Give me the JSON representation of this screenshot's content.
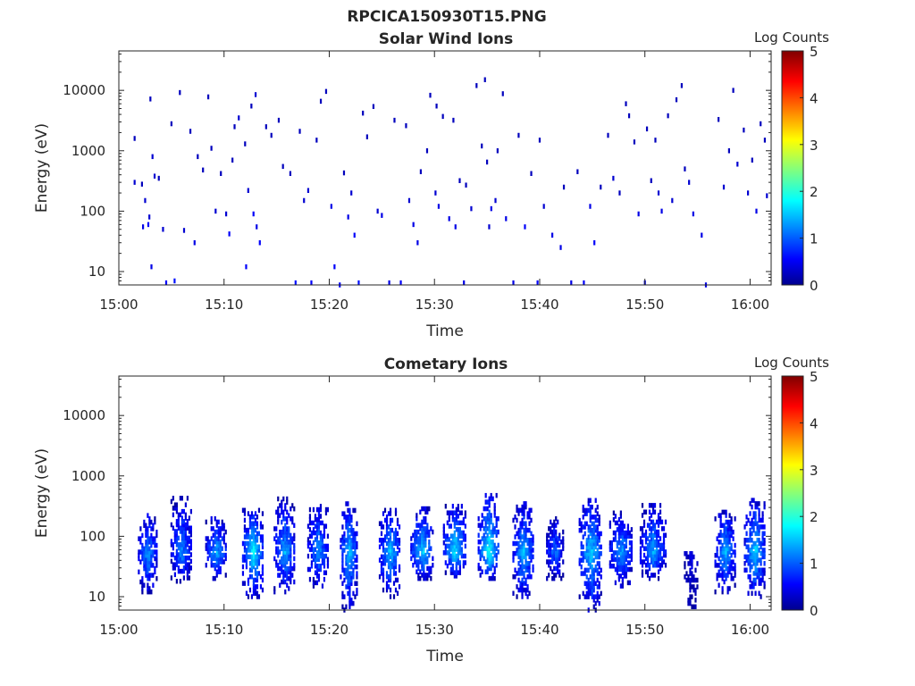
{
  "figure_title": "RPCICA150930T15.PNG",
  "chart_data": [
    {
      "type": "heatmap",
      "title": "Solar Wind Ions",
      "xlabel": "Time",
      "ylabel": "Energy (eV)",
      "x_tick_labels": [
        "15:00",
        "15:10",
        "15:20",
        "15:30",
        "15:40",
        "15:50",
        "16:00"
      ],
      "x_range_minutes": [
        0,
        62
      ],
      "y_scale": "log",
      "y_range": [
        6,
        45000
      ],
      "y_ticks": [
        {
          "value": 10,
          "label": "10"
        },
        {
          "value": 100,
          "label": "100"
        },
        {
          "value": 1000,
          "label": "1000"
        },
        {
          "value": 10000,
          "label": "10000"
        }
      ],
      "colorbar": {
        "label": "Log Counts",
        "range": [
          0,
          5
        ],
        "ticks": [
          "0",
          "1",
          "2",
          "3",
          "4",
          "5"
        ],
        "colormap": "jet"
      },
      "pattern": "sparse isolated low-count pixels from ~6 eV to ~15000 eV",
      "points": [
        [
          1.5,
          1600,
          0.3
        ],
        [
          1.5,
          300,
          0.4
        ],
        [
          2.2,
          280,
          0.3
        ],
        [
          2.5,
          150,
          0.4
        ],
        [
          2.3,
          55,
          0.5
        ],
        [
          2.8,
          60,
          0.6
        ],
        [
          2.9,
          80,
          0.4
        ],
        [
          3.0,
          7200,
          0.3
        ],
        [
          3.2,
          800,
          0.4
        ],
        [
          3.4,
          380,
          0.4
        ],
        [
          3.8,
          350,
          0.3
        ],
        [
          3.1,
          12,
          0.5
        ],
        [
          4.2,
          50,
          0.4
        ],
        [
          4.5,
          6.5,
          0.6
        ],
        [
          5.0,
          2800,
          0.3
        ],
        [
          5.3,
          7,
          0.7
        ],
        [
          5.8,
          9200,
          0.3
        ],
        [
          6.2,
          48,
          0.4
        ],
        [
          6.8,
          2100,
          0.3
        ],
        [
          7.2,
          30,
          0.5
        ],
        [
          7.5,
          800,
          0.3
        ],
        [
          8.0,
          480,
          0.3
        ],
        [
          8.5,
          7800,
          0.3
        ],
        [
          8.8,
          1100,
          0.3
        ],
        [
          9.2,
          100,
          0.4
        ],
        [
          9.7,
          420,
          0.3
        ],
        [
          10.2,
          90,
          0.4
        ],
        [
          10.5,
          42,
          0.6
        ],
        [
          10.8,
          700,
          0.3
        ],
        [
          11.0,
          2500,
          0.3
        ],
        [
          11.4,
          3500,
          0.4
        ],
        [
          12.0,
          1300,
          0.3
        ],
        [
          12.3,
          220,
          0.4
        ],
        [
          12.6,
          5500,
          0.3
        ],
        [
          12.8,
          90,
          0.6
        ],
        [
          13.0,
          8500,
          0.4
        ],
        [
          13.1,
          55,
          0.5
        ],
        [
          13.4,
          30,
          0.6
        ],
        [
          12.1,
          12,
          0.6
        ],
        [
          14.0,
          2500,
          0.3
        ],
        [
          14.5,
          1800,
          0.3
        ],
        [
          15.2,
          3200,
          0.3
        ],
        [
          15.6,
          550,
          0.3
        ],
        [
          16.3,
          420,
          0.3
        ],
        [
          16.8,
          6.5,
          0.7
        ],
        [
          17.2,
          2100,
          0.3
        ],
        [
          17.6,
          150,
          0.4
        ],
        [
          18.0,
          220,
          0.4
        ],
        [
          18.3,
          6.5,
          0.6
        ],
        [
          18.8,
          1500,
          0.3
        ],
        [
          19.2,
          6600,
          0.3
        ],
        [
          19.7,
          9600,
          0.3
        ],
        [
          20.2,
          120,
          0.5
        ],
        [
          20.5,
          12,
          0.6
        ],
        [
          21.0,
          6,
          0.6
        ],
        [
          21.4,
          430,
          0.3
        ],
        [
          21.8,
          80,
          0.5
        ],
        [
          22.1,
          200,
          0.4
        ],
        [
          22.4,
          40,
          0.6
        ],
        [
          22.8,
          6.5,
          0.7
        ],
        [
          23.2,
          4200,
          0.3
        ],
        [
          23.6,
          1700,
          0.3
        ],
        [
          24.2,
          5400,
          0.3
        ],
        [
          24.6,
          100,
          0.4
        ],
        [
          25.0,
          85,
          0.5
        ],
        [
          25.7,
          6.5,
          0.5
        ],
        [
          26.2,
          3200,
          0.3
        ],
        [
          26.8,
          6.5,
          0.6
        ],
        [
          27.3,
          2600,
          0.3
        ],
        [
          27.6,
          150,
          0.4
        ],
        [
          28.0,
          60,
          0.5
        ],
        [
          28.4,
          30,
          0.5
        ],
        [
          28.7,
          450,
          0.3
        ],
        [
          29.3,
          1000,
          0.3
        ],
        [
          29.6,
          8300,
          0.3
        ],
        [
          30.1,
          200,
          0.4
        ],
        [
          30.2,
          5500,
          0.3
        ],
        [
          30.4,
          120,
          0.5
        ],
        [
          30.8,
          3700,
          0.3
        ],
        [
          31.4,
          75,
          0.5
        ],
        [
          32.0,
          55,
          0.5
        ],
        [
          31.8,
          3200,
          0.3
        ],
        [
          32.4,
          320,
          0.3
        ],
        [
          32.8,
          6.5,
          0.5
        ],
        [
          33.0,
          270,
          0.3
        ],
        [
          33.5,
          110,
          0.4
        ],
        [
          34.0,
          12000,
          0.3
        ],
        [
          34.5,
          1200,
          0.3
        ],
        [
          34.8,
          15000,
          0.3
        ],
        [
          35.0,
          650,
          0.3
        ],
        [
          35.2,
          55,
          0.4
        ],
        [
          35.4,
          110,
          0.5
        ],
        [
          35.8,
          150,
          0.4
        ],
        [
          36.0,
          1000,
          0.3
        ],
        [
          36.5,
          8800,
          0.3
        ],
        [
          36.8,
          75,
          0.5
        ],
        [
          37.5,
          6.5,
          0.5
        ],
        [
          38.0,
          1800,
          0.3
        ],
        [
          38.6,
          55,
          0.6
        ],
        [
          39.2,
          420,
          0.3
        ],
        [
          39.8,
          6.5,
          0.6
        ],
        [
          40.0,
          1500,
          0.3
        ],
        [
          40.4,
          120,
          0.4
        ],
        [
          41.2,
          40,
          0.5
        ],
        [
          42.0,
          25,
          0.5
        ],
        [
          42.3,
          250,
          0.3
        ],
        [
          43.0,
          6.5,
          0.5
        ],
        [
          43.6,
          450,
          0.3
        ],
        [
          44.2,
          6.5,
          0.6
        ],
        [
          44.8,
          120,
          0.5
        ],
        [
          45.2,
          30,
          0.6
        ],
        [
          45.8,
          250,
          0.3
        ],
        [
          46.5,
          1800,
          0.3
        ],
        [
          47.0,
          350,
          0.4
        ],
        [
          47.6,
          200,
          0.3
        ],
        [
          48.2,
          6000,
          0.3
        ],
        [
          48.5,
          3800,
          0.3
        ],
        [
          49.0,
          1400,
          0.3
        ],
        [
          49.4,
          90,
          0.5
        ],
        [
          50.0,
          6.5,
          0.6
        ],
        [
          50.2,
          2300,
          0.3
        ],
        [
          50.6,
          320,
          0.3
        ],
        [
          51.0,
          1500,
          0.3
        ],
        [
          51.3,
          200,
          0.4
        ],
        [
          51.6,
          100,
          0.5
        ],
        [
          52.2,
          3800,
          0.3
        ],
        [
          52.6,
          150,
          0.4
        ],
        [
          53.0,
          7000,
          0.3
        ],
        [
          53.5,
          12000,
          0.3
        ],
        [
          53.8,
          500,
          0.3
        ],
        [
          54.2,
          300,
          0.4
        ],
        [
          54.6,
          90,
          0.5
        ],
        [
          55.4,
          40,
          0.5
        ],
        [
          55.8,
          6,
          0.5
        ],
        [
          57.0,
          3300,
          0.3
        ],
        [
          57.5,
          250,
          0.4
        ],
        [
          58.0,
          1000,
          0.3
        ],
        [
          58.4,
          10000,
          0.3
        ],
        [
          58.8,
          600,
          0.4
        ],
        [
          59.4,
          2200,
          0.3
        ],
        [
          59.8,
          200,
          0.4
        ],
        [
          60.2,
          700,
          0.3
        ],
        [
          60.6,
          100,
          0.5
        ],
        [
          61.0,
          2800,
          0.3
        ],
        [
          61.4,
          1500,
          0.3
        ],
        [
          61.6,
          180,
          0.4
        ]
      ]
    },
    {
      "type": "heatmap",
      "title": "Cometary Ions",
      "xlabel": "Time",
      "ylabel": "Energy (eV)",
      "x_tick_labels": [
        "15:00",
        "15:10",
        "15:20",
        "15:30",
        "15:40",
        "15:50",
        "16:00"
      ],
      "x_range_minutes": [
        0,
        62
      ],
      "y_scale": "log",
      "y_range": [
        6,
        45000
      ],
      "y_ticks": [
        {
          "value": 10,
          "label": "10"
        },
        {
          "value": 100,
          "label": "100"
        },
        {
          "value": 1000,
          "label": "1000"
        },
        {
          "value": 10000,
          "label": "10000"
        }
      ],
      "colorbar": {
        "label": "Log Counts",
        "range": [
          0,
          5
        ],
        "ticks": [
          "0",
          "1",
          "2",
          "3",
          "4",
          "5"
        ],
        "colormap": "jet"
      },
      "pattern": "periodic bursts between ~10 eV and ~500 eV, peak near 40-100 eV, roughly every 3 minutes",
      "bursts": [
        {
          "t": 2.8,
          "half_width": 0.9,
          "e_min": 12,
          "e_max": 250,
          "peak": 1.4
        },
        {
          "t": 6.0,
          "half_width": 1.0,
          "e_min": 18,
          "e_max": 450,
          "peak": 1.3
        },
        {
          "t": 9.3,
          "half_width": 1.0,
          "e_min": 20,
          "e_max": 220,
          "peak": 1.5
        },
        {
          "t": 12.8,
          "half_width": 1.0,
          "e_min": 10,
          "e_max": 280,
          "peak": 1.9
        },
        {
          "t": 15.8,
          "half_width": 1.0,
          "e_min": 12,
          "e_max": 420,
          "peak": 1.5
        },
        {
          "t": 19.0,
          "half_width": 1.0,
          "e_min": 15,
          "e_max": 320,
          "peak": 1.4
        },
        {
          "t": 21.9,
          "half_width": 0.8,
          "e_min": 6,
          "e_max": 380,
          "peak": 1.6
        },
        {
          "t": 25.8,
          "half_width": 1.0,
          "e_min": 10,
          "e_max": 300,
          "peak": 1.6
        },
        {
          "t": 28.9,
          "half_width": 1.1,
          "e_min": 20,
          "e_max": 300,
          "peak": 1.7
        },
        {
          "t": 32.0,
          "half_width": 1.1,
          "e_min": 22,
          "e_max": 350,
          "peak": 1.8
        },
        {
          "t": 35.2,
          "half_width": 1.0,
          "e_min": 20,
          "e_max": 500,
          "peak": 2.0
        },
        {
          "t": 38.5,
          "half_width": 1.0,
          "e_min": 10,
          "e_max": 350,
          "peak": 1.6
        },
        {
          "t": 41.5,
          "half_width": 0.8,
          "e_min": 20,
          "e_max": 220,
          "peak": 1.2
        },
        {
          "t": 44.9,
          "half_width": 1.1,
          "e_min": 6,
          "e_max": 420,
          "peak": 1.7
        },
        {
          "t": 47.8,
          "half_width": 1.1,
          "e_min": 15,
          "e_max": 250,
          "peak": 1.5
        },
        {
          "t": 50.8,
          "half_width": 1.2,
          "e_min": 20,
          "e_max": 350,
          "peak": 1.5
        },
        {
          "t": 54.4,
          "half_width": 0.6,
          "e_min": 6,
          "e_max": 60,
          "peak": 0.6
        },
        {
          "t": 57.7,
          "half_width": 1.0,
          "e_min": 12,
          "e_max": 280,
          "peak": 1.5
        },
        {
          "t": 60.5,
          "half_width": 1.0,
          "e_min": 10,
          "e_max": 420,
          "peak": 1.7
        }
      ]
    }
  ]
}
